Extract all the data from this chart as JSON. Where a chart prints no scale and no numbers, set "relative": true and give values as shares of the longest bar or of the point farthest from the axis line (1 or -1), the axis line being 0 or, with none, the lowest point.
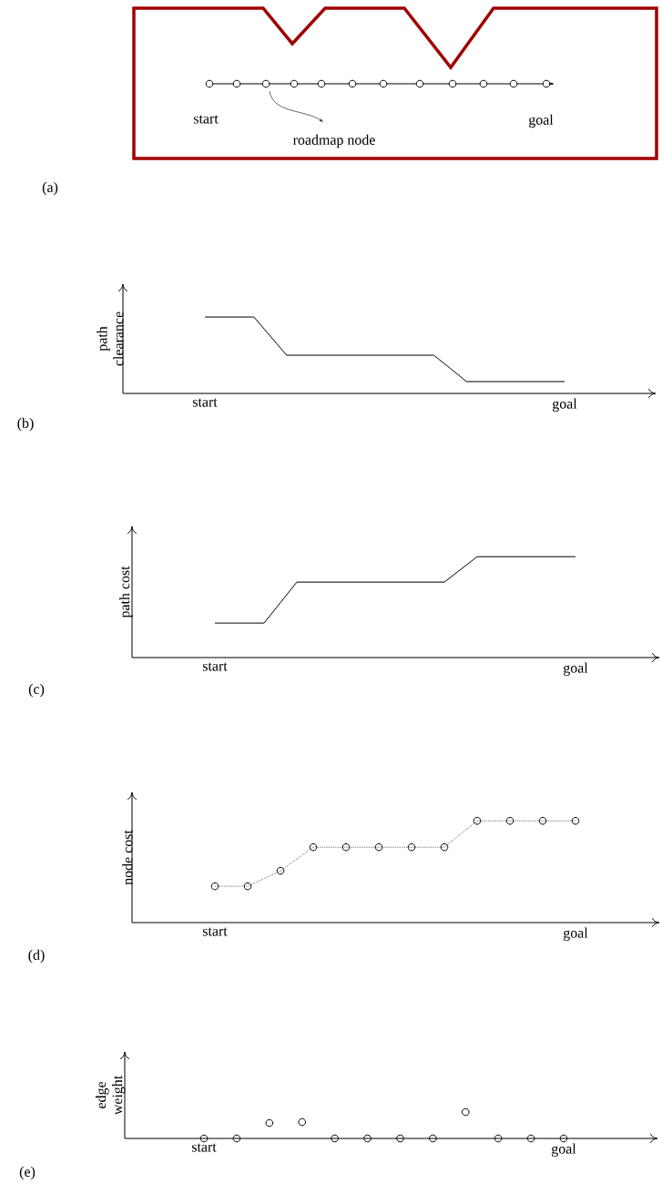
{
  "chart_data": [
    {
      "type": "other",
      "annotations": [
        "start",
        "roadmap node",
        "goal",
        "(a)"
      ]
    },
    {
      "type": "line",
      "relative": true,
      "ylabel": "path clearance",
      "annotations": [
        "(b)"
      ],
      "line_style": "solid",
      "categories": [
        "start",
        null,
        null,
        null,
        null,
        null,
        null,
        null,
        null,
        null,
        null,
        null,
        null,
        null,
        null,
        null,
        null,
        null,
        null,
        null,
        null,
        null,
        "goal"
      ],
      "series": [
        {
          "color": "#000000",
          "values": [
            1,
            1,
            1,
            1,
            0.75,
            0.5,
            0.5,
            0.5,
            0.5,
            0.5,
            0.5,
            0.5,
            0.5,
            0.5,
            0.5,
            0.33,
            0.155,
            0.155,
            0.155,
            0.155,
            0.155,
            0.155,
            0.155
          ]
        }
      ]
    },
    {
      "type": "line",
      "relative": true,
      "ylabel": "path cost",
      "annotations": [
        "(c)"
      ],
      "line_style": "solid",
      "categories": [
        "start",
        null,
        null,
        null,
        null,
        null,
        null,
        null,
        null,
        null,
        null,
        null,
        null,
        null,
        null,
        null,
        null,
        null,
        null,
        null,
        null,
        null,
        "goal"
      ],
      "series": [
        {
          "color": "#000000",
          "values": [
            0.342,
            0.342,
            0.342,
            0.342,
            0.545,
            0.748,
            0.748,
            0.748,
            0.748,
            0.748,
            0.748,
            0.748,
            0.748,
            0.748,
            0.748,
            0.874,
            1,
            1,
            1,
            1,
            1,
            1,
            1
          ]
        }
      ]
    },
    {
      "type": "line",
      "relative": true,
      "ylabel": "node cost",
      "annotations": [
        "(d)"
      ],
      "line_style": "dotted",
      "marker": "circle",
      "categories": [
        "start",
        null,
        null,
        null,
        null,
        null,
        null,
        null,
        null,
        null,
        null,
        "goal"
      ],
      "series": [
        {
          "color": "#000000",
          "values": [
            0.357,
            0.357,
            0.509,
            0.741,
            0.741,
            0.741,
            0.741,
            0.741,
            1,
            1,
            1,
            1
          ]
        }
      ]
    },
    {
      "type": "scatter",
      "relative": true,
      "ylabel": "edge weight",
      "annotations": [
        "(e)"
      ],
      "marker": "circle",
      "categories": [
        "start",
        null,
        null,
        null,
        null,
        null,
        null,
        null,
        null,
        null,
        null,
        "goal"
      ],
      "series": [
        {
          "color": "#000000",
          "values": [
            0,
            0,
            0.586,
            0.621,
            0,
            0,
            0,
            0,
            1,
            0,
            0,
            0
          ]
        }
      ]
    }
  ]
}
